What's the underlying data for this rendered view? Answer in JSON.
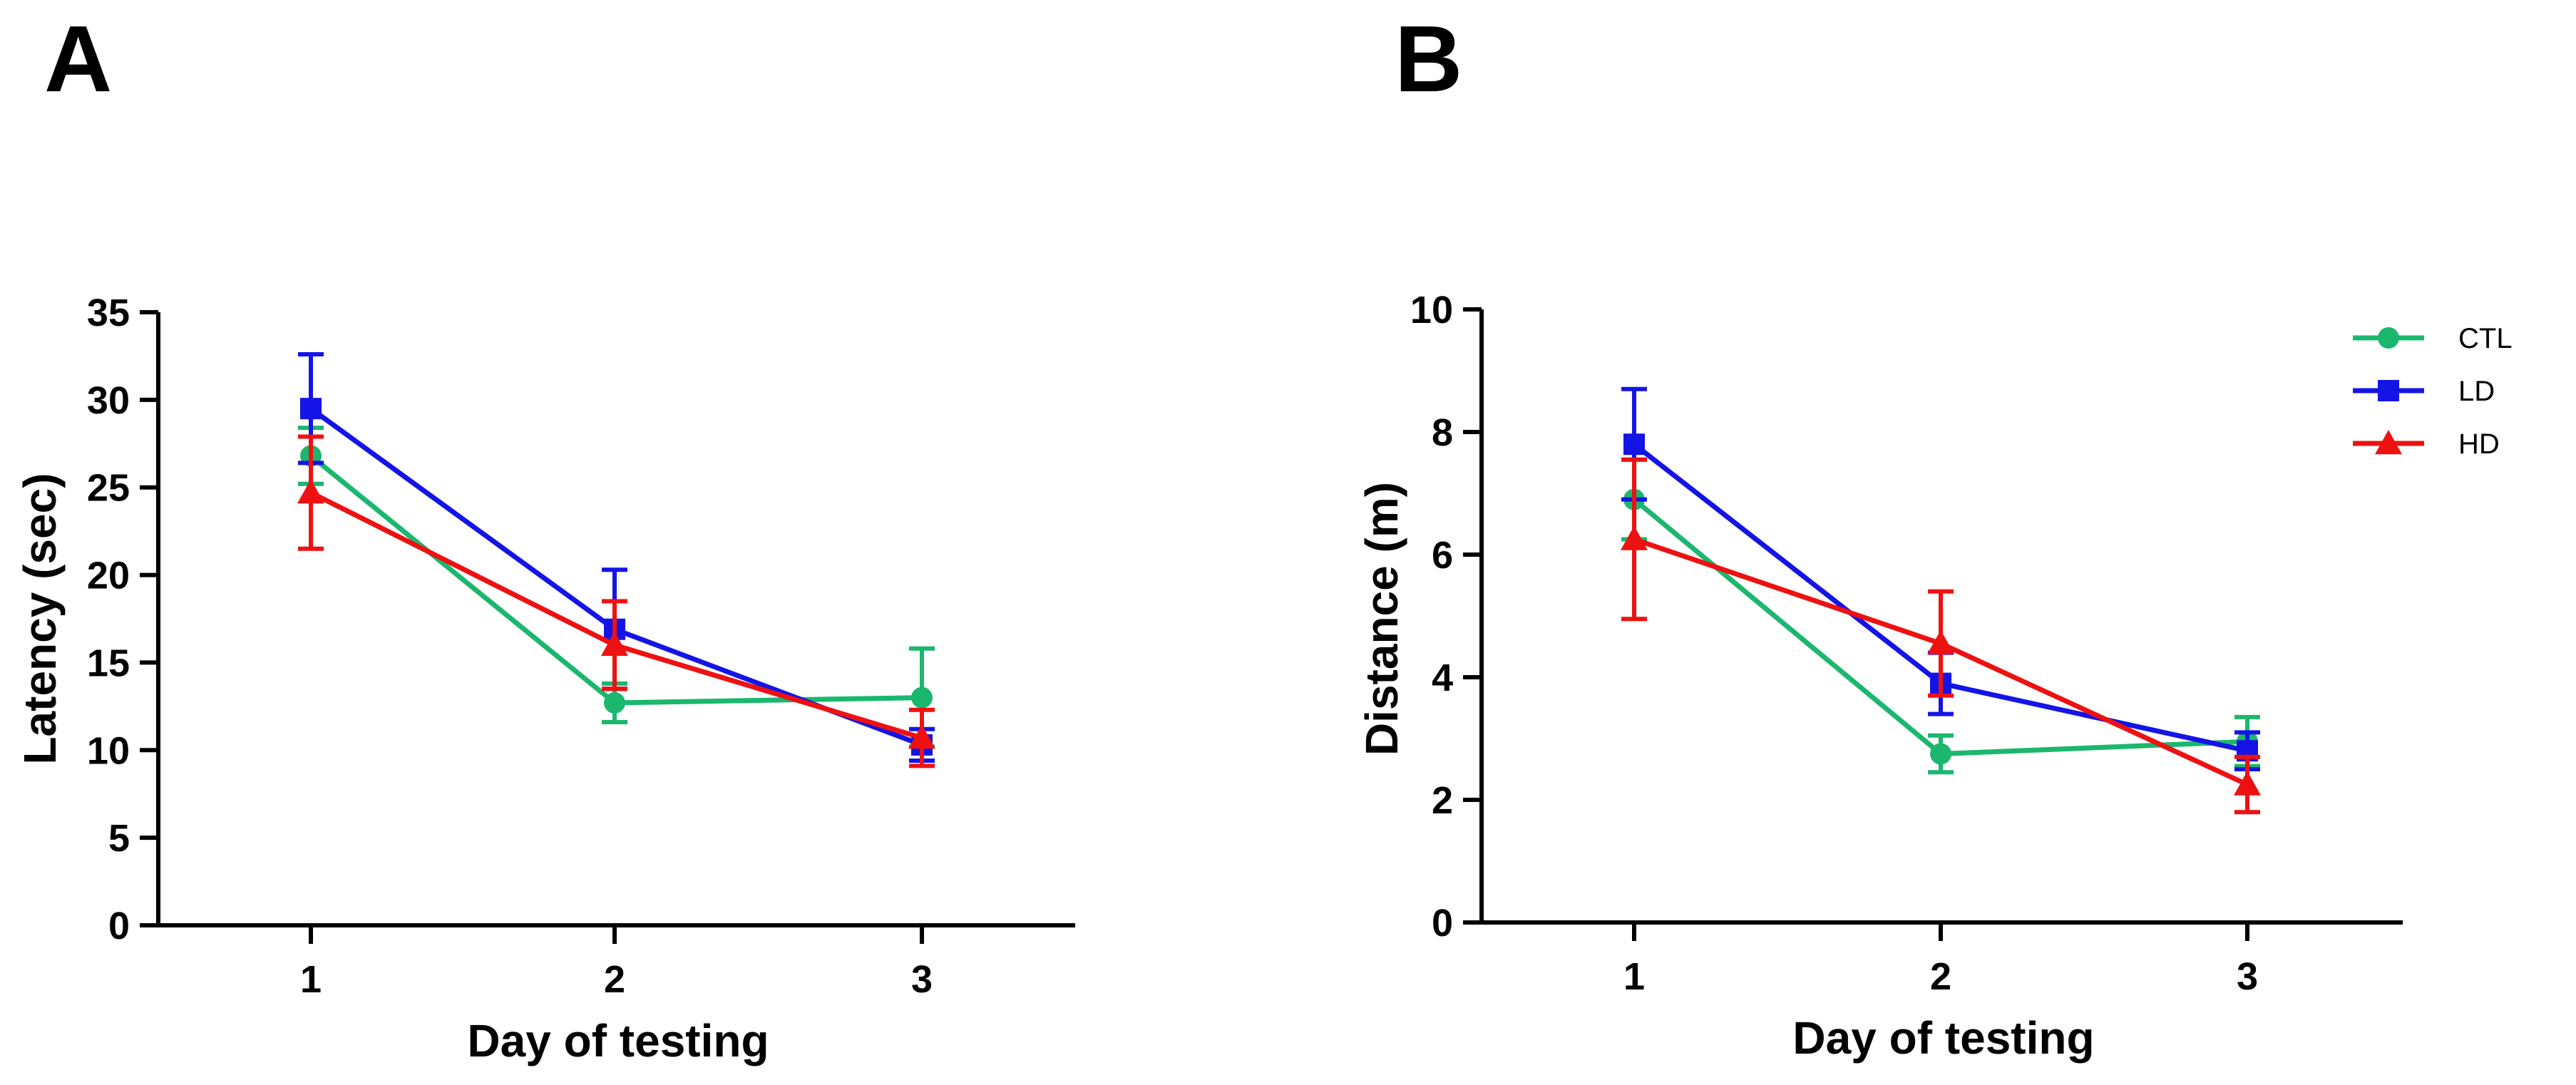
{
  "legend": {
    "placement": "top-right",
    "entries": [
      {
        "name": "CTL",
        "color": "#1BB76E",
        "marker": "circle"
      },
      {
        "name": "LD",
        "color": "#1414E6",
        "marker": "square"
      },
      {
        "name": "HD",
        "color": "#EE1111",
        "marker": "triangle"
      }
    ]
  },
  "chart_data": [
    {
      "panel": "A",
      "type": "line",
      "title": "",
      "xlabel": "Day of testing",
      "ylabel": "Latency (sec)",
      "categories": [
        "1",
        "2",
        "3"
      ],
      "xlim": [
        0.5,
        3.5
      ],
      "ylim": [
        0,
        35
      ],
      "yticks": [
        0,
        5,
        10,
        15,
        20,
        25,
        30,
        35
      ],
      "grid": false,
      "series": [
        {
          "name": "CTL",
          "values": [
            26.8,
            12.7,
            13.0
          ],
          "errors": [
            1.6,
            1.1,
            2.8
          ]
        },
        {
          "name": "LD",
          "values": [
            29.5,
            16.9,
            10.3
          ],
          "errors": [
            3.1,
            3.4,
            0.9
          ]
        },
        {
          "name": "HD",
          "values": [
            24.7,
            16.0,
            10.7
          ],
          "errors": [
            3.2,
            2.5,
            1.6
          ]
        }
      ]
    },
    {
      "panel": "B",
      "type": "line",
      "title": "",
      "xlabel": "Day of testing",
      "ylabel": "Distance (m)",
      "categories": [
        "1",
        "2",
        "3"
      ],
      "xlim": [
        0.5,
        3.5
      ],
      "ylim": [
        0,
        10
      ],
      "yticks": [
        0,
        2,
        4,
        6,
        8,
        10
      ],
      "grid": false,
      "series": [
        {
          "name": "CTL",
          "values": [
            6.9,
            2.75,
            2.95
          ],
          "errors": [
            0.65,
            0.3,
            0.4
          ]
        },
        {
          "name": "LD",
          "values": [
            7.8,
            3.9,
            2.8
          ],
          "errors": [
            0.9,
            0.5,
            0.3
          ]
        },
        {
          "name": "HD",
          "values": [
            6.25,
            4.55,
            2.25
          ],
          "errors": [
            1.3,
            0.85,
            0.45
          ]
        }
      ]
    }
  ]
}
